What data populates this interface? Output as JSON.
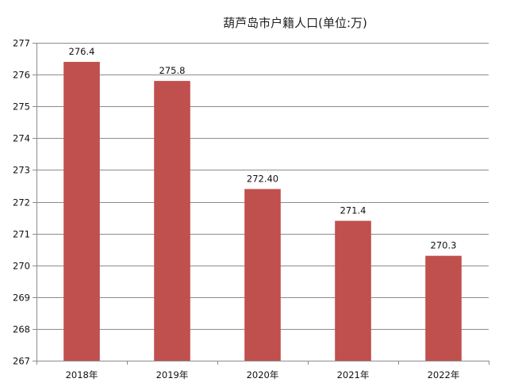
{
  "chart_data": {
    "type": "bar",
    "title": "葫芦岛市户籍人口(单位:万)",
    "categories": [
      "2018年",
      "2019年",
      "2020年",
      "2021年",
      "2022年"
    ],
    "values": [
      276.4,
      275.8,
      272.4,
      271.4,
      270.3
    ],
    "data_labels": [
      "276.4",
      "275.8",
      "272.40",
      "271.4",
      "270.3"
    ],
    "ylim": [
      267,
      277
    ],
    "yticks": [
      267,
      268,
      269,
      270,
      271,
      272,
      273,
      274,
      275,
      276,
      277
    ],
    "grid": true,
    "legend": "none",
    "bar_color": "#C0504D",
    "xlabel": "",
    "ylabel": ""
  }
}
